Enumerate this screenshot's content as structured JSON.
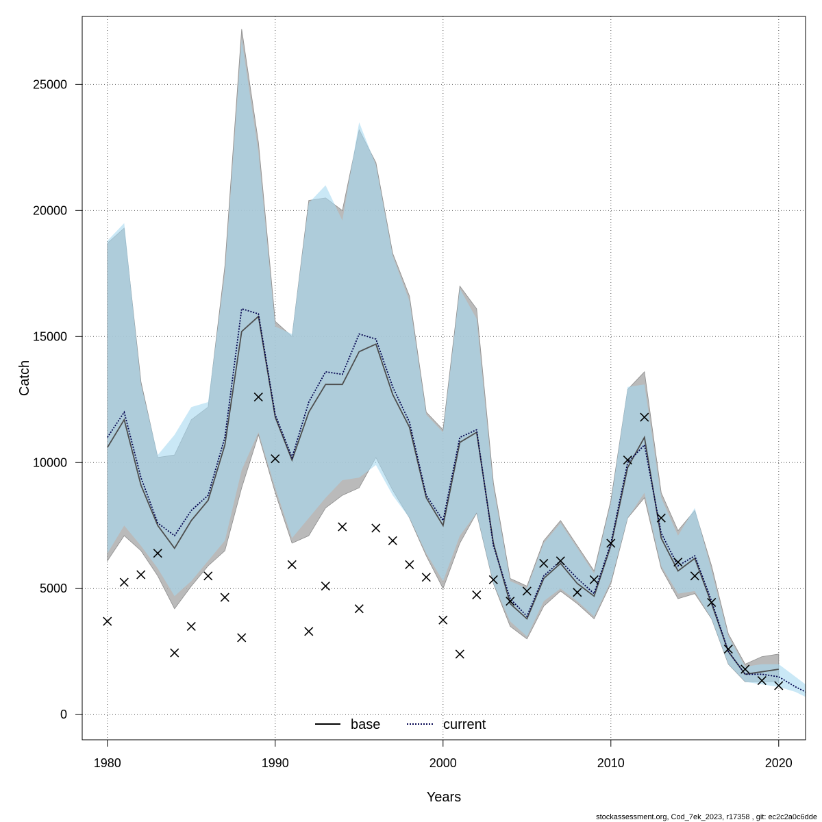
{
  "chart_data": {
    "type": "line",
    "title": "",
    "xlabel": "Years",
    "ylabel": "Catch",
    "xlim": [
      1978.5,
      2021.6
    ],
    "ylim": [
      -1000,
      27700
    ],
    "x_ticks": [
      1980,
      1990,
      2000,
      2010,
      2020
    ],
    "y_ticks": [
      0,
      5000,
      10000,
      15000,
      20000,
      25000
    ],
    "x_tick_labels": [
      "1980",
      "1990",
      "2000",
      "2010",
      "2020"
    ],
    "y_tick_labels": [
      "0",
      "5000",
      "10000",
      "15000",
      "20000",
      "25000"
    ],
    "grid": true,
    "legend_placement": "bottom-center",
    "colors": {
      "base_band": "#a9a9a9",
      "current_band": "#a6d8f0",
      "base_line": "#000000",
      "current_line": "#00004d",
      "observed": "#000000",
      "grid": "#555555"
    },
    "series": [
      {
        "name": "base",
        "style": "solid",
        "x": [
          1980,
          1981,
          1982,
          1983,
          1984,
          1985,
          1986,
          1987,
          1988,
          1989,
          1990,
          1991,
          1992,
          1993,
          1994,
          1995,
          1996,
          1997,
          1998,
          1999,
          2000,
          2001,
          2002,
          2003,
          2004,
          2005,
          2006,
          2007,
          2008,
          2009,
          2010,
          2011,
          2012,
          2013,
          2014,
          2015,
          2016,
          2017,
          2018,
          2019,
          2020
        ],
        "values": [
          10600,
          11700,
          9100,
          7500,
          6600,
          7700,
          8500,
          10700,
          15200,
          15800,
          11800,
          10100,
          12000,
          13100,
          13100,
          14400,
          14700,
          12700,
          11400,
          8600,
          7500,
          10800,
          11200,
          6800,
          4400,
          3800,
          5400,
          6000,
          5200,
          4700,
          6700,
          9800,
          11000,
          7000,
          5700,
          6200,
          4400,
          2500,
          1600,
          1700,
          1800
        ],
        "upper": [
          18700,
          19300,
          13200,
          10200,
          10300,
          11700,
          12200,
          17800,
          27200,
          22700,
          15600,
          15000,
          20400,
          20500,
          20000,
          23200,
          21900,
          18300,
          16600,
          12000,
          11300,
          17000,
          16100,
          9200,
          5400,
          5100,
          6900,
          7700,
          6700,
          5700,
          8500,
          12900,
          13600,
          8800,
          7300,
          8100,
          5900,
          3200,
          2000,
          2300,
          2400
        ],
        "lower": [
          6100,
          7100,
          6500,
          5500,
          4200,
          5100,
          5900,
          6500,
          9000,
          11100,
          8800,
          6800,
          7100,
          8200,
          8700,
          9000,
          10200,
          8900,
          7800,
          6300,
          5000,
          6800,
          8000,
          5200,
          3500,
          3000,
          4300,
          4900,
          4400,
          3800,
          5200,
          7800,
          8600,
          5800,
          4600,
          4800,
          3800,
          2000,
          1300,
          1300,
          1300
        ]
      },
      {
        "name": "current",
        "style": "dotted",
        "x": [
          1980,
          1981,
          1982,
          1983,
          1984,
          1985,
          1986,
          1987,
          1988,
          1989,
          1990,
          1991,
          1992,
          1993,
          1994,
          1995,
          1996,
          1997,
          1998,
          1999,
          2000,
          2001,
          2002,
          2003,
          2004,
          2005,
          2006,
          2007,
          2008,
          2009,
          2010,
          2011,
          2012,
          2013,
          2014,
          2015,
          2016,
          2017,
          2018,
          2019,
          2020,
          2021,
          2021.6
        ],
        "values": [
          11000,
          12000,
          9400,
          7600,
          7100,
          8100,
          8700,
          11000,
          16100,
          15900,
          11900,
          10200,
          12400,
          13600,
          13500,
          15100,
          14900,
          13000,
          11600,
          8700,
          7700,
          11000,
          11300,
          6700,
          4600,
          3900,
          5500,
          6100,
          5400,
          4800,
          6800,
          10000,
          10700,
          7200,
          5900,
          6300,
          4500,
          2500,
          1600,
          1600,
          1500,
          1100,
          900
        ],
        "upper": [
          18800,
          19500,
          13100,
          10300,
          11100,
          12200,
          12400,
          17500,
          26800,
          22300,
          15400,
          15100,
          20300,
          21000,
          19600,
          23500,
          21800,
          18200,
          16400,
          11900,
          11200,
          16900,
          15700,
          9000,
          5300,
          5000,
          6800,
          7600,
          6600,
          5600,
          8400,
          13000,
          13100,
          8600,
          7100,
          8200,
          5700,
          3100,
          1900,
          2000,
          2000,
          1500,
          1200
        ],
        "lower": [
          6400,
          7500,
          6700,
          5800,
          4700,
          5300,
          6100,
          6900,
          9700,
          11200,
          9000,
          7000,
          7800,
          8600,
          9300,
          9400,
          9900,
          8700,
          7800,
          6400,
          5300,
          7100,
          8000,
          5200,
          3700,
          3100,
          4500,
          5000,
          4500,
          3900,
          5300,
          7800,
          8800,
          5900,
          4800,
          4900,
          3800,
          2000,
          1300,
          1200,
          1100,
          900,
          700
        ]
      }
    ],
    "observed": {
      "name": "observed catch",
      "marker": "x",
      "x": [
        1980,
        1981,
        1982,
        1983,
        1984,
        1985,
        1986,
        1987,
        1988,
        1989,
        1990,
        1991,
        1992,
        1993,
        1994,
        1995,
        1996,
        1997,
        1998,
        1999,
        2000,
        2001,
        2002,
        2003,
        2004,
        2005,
        2006,
        2007,
        2008,
        2009,
        2010,
        2011,
        2012,
        2013,
        2014,
        2015,
        2016,
        2017,
        2018,
        2019,
        2020
      ],
      "values": [
        3700,
        5250,
        5550,
        6400,
        2450,
        3500,
        5500,
        4650,
        3050,
        12600,
        10150,
        5950,
        3300,
        5100,
        7450,
        4200,
        7400,
        6900,
        5950,
        5450,
        3750,
        2400,
        4750,
        5350,
        4500,
        4900,
        6000,
        6100,
        4850,
        5350,
        6800,
        10100,
        11800,
        7800,
        6050,
        5500,
        4450,
        2600,
        1800,
        1350,
        1150
      ]
    },
    "footer": "stockassessment.org, Cod_7ek_2023, r17358 , git: ec2c2a0c6dde"
  }
}
